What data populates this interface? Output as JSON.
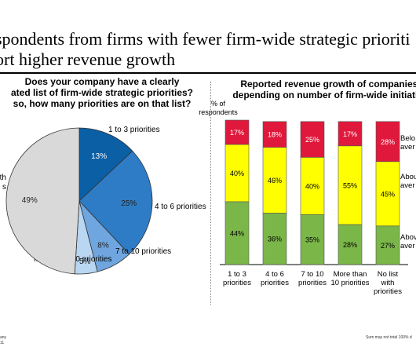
{
  "headline": {
    "line1": "spondents from firms with fewer firm-wide strategic prioriti",
    "line2": "ort higher revenue growth"
  },
  "chart_data": [
    {
      "type": "pie",
      "title_lines": [
        "Does your company have a clearly",
        "ated list of firm-wide strategic priorities?",
        "so, how many priorities are on that list?"
      ],
      "slices": [
        {
          "label": "1 to 3 priorities",
          "value": 13,
          "value_label": "13%",
          "color": "#0b5fa5"
        },
        {
          "label": "4 to 6 priorities",
          "value": 25,
          "value_label": "25%",
          "color": "#2e7cc6"
        },
        {
          "label": "7 to 10 priorities",
          "value": 8,
          "value_label": "8%",
          "color": "#6fa6df"
        },
        {
          "label": "More than 10 priorities",
          "value": 5,
          "value_label": "5%",
          "color": "#b9d6f2"
        },
        {
          "label": "No list with priorities",
          "display_lines": [
            "with",
            "s"
          ],
          "value": 49,
          "value_label": "49%",
          "color": "#d9d9d9"
        }
      ]
    },
    {
      "type": "bar",
      "stacked": true,
      "title_lines": [
        "Reported revenue growth of companies,",
        "depending on number of firm-wide initiative"
      ],
      "ylabel_lines": [
        "% of",
        "respondents"
      ],
      "categories": [
        [
          "1 to 3",
          "priorities"
        ],
        [
          "4 to 6",
          "priorities"
        ],
        [
          "7 to 10",
          "priorities"
        ],
        [
          "More than",
          "10 priorities"
        ],
        [
          "No list",
          "with",
          "priorities"
        ]
      ],
      "series": [
        {
          "name_lines": [
            "Abov",
            "aver"
          ],
          "color": "#7ab648",
          "values": [
            44,
            36,
            35,
            28,
            27
          ],
          "labels": [
            "44%",
            "36%",
            "35%",
            "28%",
            "27%"
          ]
        },
        {
          "name_lines": [
            "Abou",
            "aver"
          ],
          "color": "#ffff00",
          "values": [
            40,
            46,
            40,
            55,
            45
          ],
          "labels": [
            "40%",
            "46%",
            "40%",
            "55%",
            "45%"
          ]
        },
        {
          "name_lines": [
            "Belo",
            "aver"
          ],
          "color": "#e0183c",
          "values": [
            17,
            18,
            25,
            17,
            28
          ],
          "labels": [
            "17%",
            "18%",
            "25%",
            "17%",
            "28%"
          ]
        }
      ]
    }
  ],
  "footer": {
    "left_line1": "any",
    "left_line2": "11",
    "right": "Sum may not total 100% d"
  }
}
